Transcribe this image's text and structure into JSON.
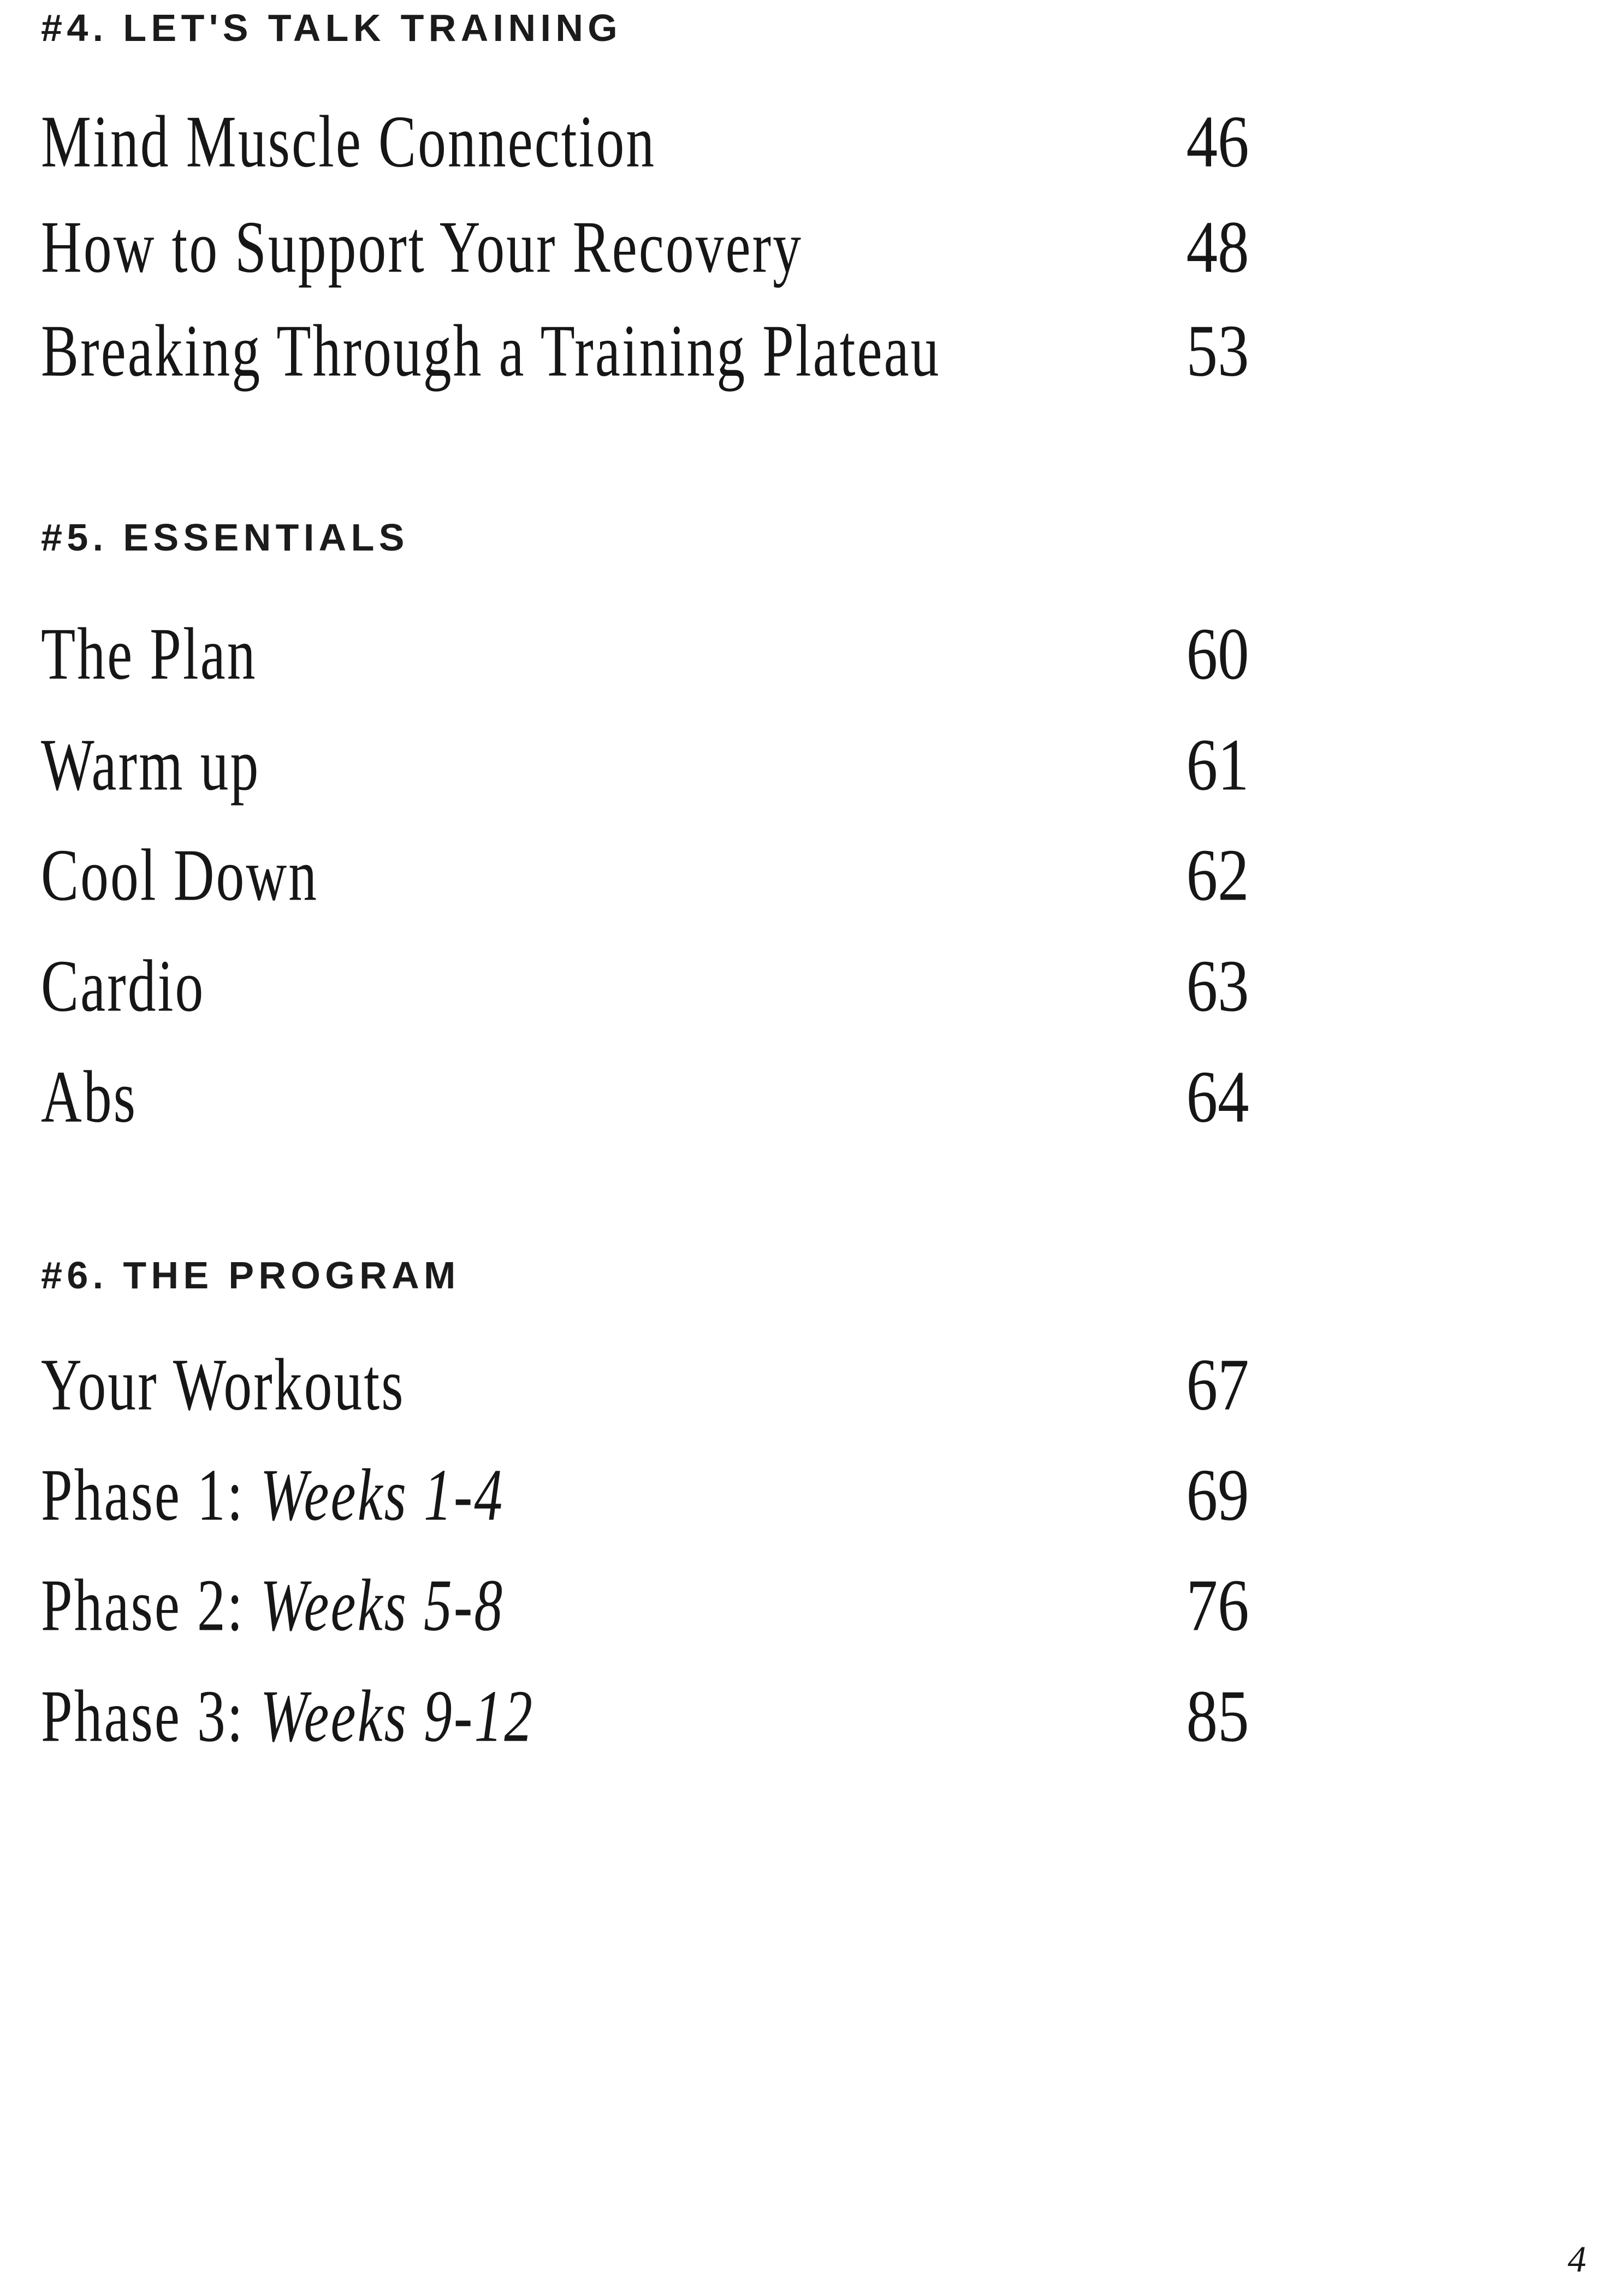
{
  "document": {
    "page_number": "4"
  },
  "colors": {
    "text": "#161616",
    "background": "#ffffff"
  },
  "sections": [
    {
      "heading": "#4. LET'S TALK TRAINING",
      "items": [
        {
          "title": "Mind Muscle Connection",
          "page": "46"
        },
        {
          "title": "How to Support Your Recovery",
          "page": "48"
        },
        {
          "title": "Breaking Through a Training Plateau",
          "page": "53"
        }
      ]
    },
    {
      "heading": "#5. ESSENTIALS",
      "items": [
        {
          "title": "The Plan",
          "page": "60"
        },
        {
          "title": "Warm up",
          "page": "61"
        },
        {
          "title": "Cool Down",
          "page": "62"
        },
        {
          "title": "Cardio",
          "page": "63"
        },
        {
          "title": "Abs",
          "page": "64"
        }
      ]
    },
    {
      "heading": "#6. THE PROGRAM",
      "items": [
        {
          "title": "Your Workouts",
          "page": "67"
        },
        {
          "title": "Phase 1:",
          "subtitle_italic": "Weeks 1-4",
          "page": "69"
        },
        {
          "title": "Phase 2:",
          "subtitle_italic": "Weeks 5-8",
          "page": "76"
        },
        {
          "title": "Phase 3:",
          "subtitle_italic": "Weeks 9-12",
          "page": "85"
        }
      ]
    }
  ]
}
